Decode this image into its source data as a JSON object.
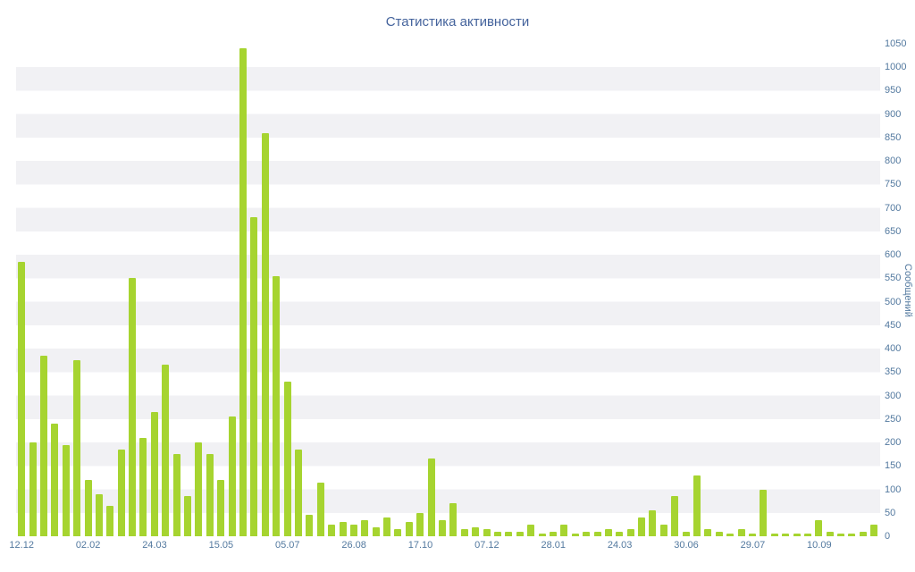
{
  "colors": {
    "bar": "#a6d430",
    "title_text": "#44639c",
    "axis_text": "#53799f",
    "stripe": "#f1f1f4",
    "background": "#ffffff"
  },
  "chart_data": {
    "type": "bar",
    "title": "Статистика активности",
    "xlabel": "",
    "ylabel": "Сообщений",
    "ylim": [
      0,
      1050
    ],
    "ytick_step": 50,
    "yticks": [
      0,
      50,
      100,
      150,
      200,
      250,
      300,
      350,
      400,
      450,
      500,
      550,
      600,
      650,
      700,
      750,
      800,
      850,
      900,
      950,
      1000,
      1050
    ],
    "grid": "striped-horizontal-bands",
    "legend": "none",
    "x_tick_labels": [
      "12.12",
      "02.02",
      "24.03",
      "15.05",
      "05.07",
      "26.08",
      "17.10",
      "07.12",
      "28.01",
      "24.03",
      "30.06",
      "29.07",
      "10.09"
    ],
    "x_label_every_n_bars": 6,
    "values": [
      585,
      200,
      385,
      240,
      195,
      375,
      120,
      90,
      65,
      185,
      550,
      210,
      265,
      365,
      175,
      85,
      200,
      175,
      120,
      255,
      1040,
      680,
      860,
      555,
      330,
      185,
      45,
      115,
      25,
      30,
      25,
      35,
      20,
      40,
      15,
      30,
      50,
      165,
      35,
      70,
      15,
      20,
      15,
      10,
      10,
      10,
      25,
      5,
      10,
      25,
      5,
      10,
      10,
      15,
      10,
      15,
      40,
      55,
      25,
      85,
      10,
      130,
      15,
      10,
      5,
      15,
      5,
      100,
      5,
      5,
      5,
      5,
      35,
      10,
      5,
      5,
      10,
      25
    ]
  }
}
